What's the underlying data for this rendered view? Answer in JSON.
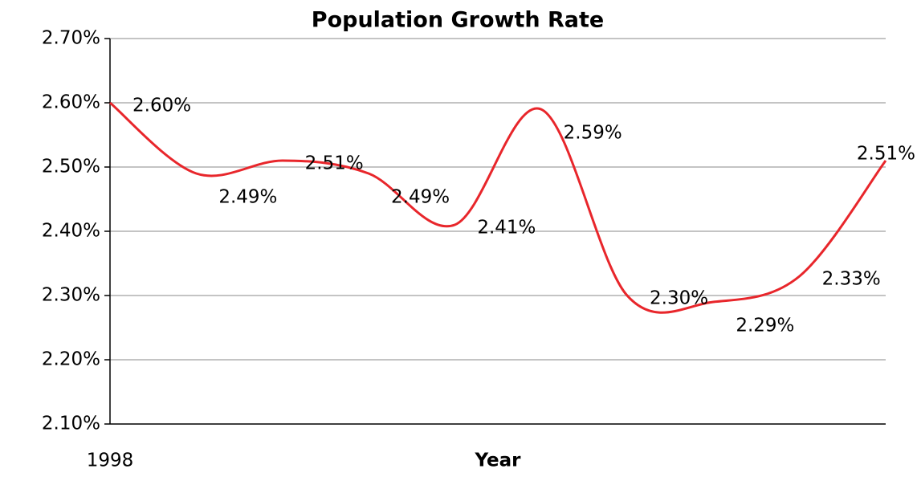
{
  "chart_data": {
    "type": "line",
    "title": "Population Growth Rate",
    "x_label": "Year",
    "categories": [
      "1998",
      null,
      null,
      null,
      null,
      null,
      null,
      null,
      null,
      null
    ],
    "series": [
      {
        "name": "Population Growth Rate",
        "color": "#e8262b",
        "values": [
          2.6,
          2.49,
          2.51,
          2.49,
          2.41,
          2.59,
          2.3,
          2.29,
          2.33,
          2.51
        ],
        "value_labels": [
          "2.60%",
          "2.49%",
          "2.51%",
          "2.49%",
          "2.41%",
          "2.59%",
          "2.30%",
          "2.29%",
          "2.33%",
          "2.51%"
        ]
      }
    ],
    "ylim": [
      2.1,
      2.7
    ],
    "yticks": [
      {
        "value": 2.1,
        "label": "2.10%"
      },
      {
        "value": 2.2,
        "label": "2.20%"
      },
      {
        "value": 2.3,
        "label": "2.30%"
      },
      {
        "value": 2.4,
        "label": "2.40%"
      },
      {
        "value": 2.5,
        "label": "2.50%"
      },
      {
        "value": 2.6,
        "label": "2.60%"
      },
      {
        "value": 2.7,
        "label": "2.70%"
      }
    ],
    "grid": true,
    "smooth": true
  }
}
